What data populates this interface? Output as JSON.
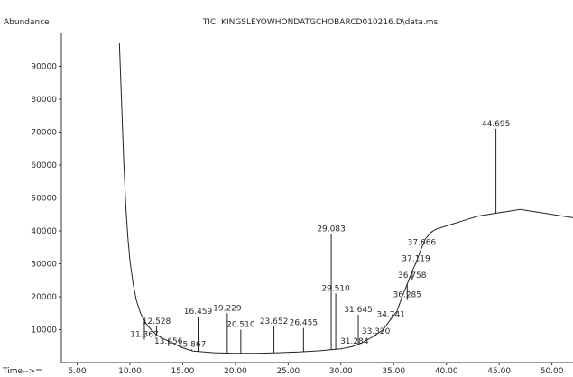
{
  "chart_data": {
    "type": "line",
    "title": "TIC: KINGSLEYOWHONDATGCHOBARCD010216.D\\data.ms",
    "ylabel": "Abundance",
    "xlabel": "Time-->",
    "xlim": [
      3.5,
      52.0
    ],
    "ylim": [
      0,
      100000
    ],
    "xticks": [
      5.0,
      10.0,
      15.0,
      20.0,
      25.0,
      30.0,
      35.0,
      40.0,
      45.0,
      50.0
    ],
    "xtick_labels": [
      "5.00",
      "10.00",
      "15.00",
      "20.00",
      "25.00",
      "30.00",
      "35.00",
      "40.00",
      "45.00",
      "50.00"
    ],
    "yticks": [
      10000,
      20000,
      30000,
      40000,
      50000,
      60000,
      70000,
      80000,
      90000
    ],
    "ytick_labels": [
      "10000",
      "20000",
      "30000",
      "40000",
      "50000",
      "60000",
      "70000",
      "80000",
      "90000"
    ],
    "grid": false,
    "baseline": [
      [
        9.0,
        97000
      ],
      [
        9.2,
        80000
      ],
      [
        9.4,
        62000
      ],
      [
        9.6,
        48000
      ],
      [
        9.8,
        38000
      ],
      [
        10.0,
        31000
      ],
      [
        10.3,
        24000
      ],
      [
        10.6,
        19000
      ],
      [
        11.0,
        15000
      ],
      [
        11.5,
        12000
      ],
      [
        12.0,
        10000
      ],
      [
        12.5,
        8500
      ],
      [
        13.0,
        7500
      ],
      [
        14.0,
        6000
      ],
      [
        15.0,
        4500
      ],
      [
        16.0,
        3500
      ],
      [
        18.0,
        3000
      ],
      [
        20.0,
        2800
      ],
      [
        22.0,
        2800
      ],
      [
        24.0,
        3000
      ],
      [
        26.0,
        3200
      ],
      [
        28.0,
        3600
      ],
      [
        30.0,
        4200
      ],
      [
        31.0,
        4800
      ],
      [
        32.0,
        6000
      ],
      [
        33.0,
        7800
      ],
      [
        34.0,
        10000
      ],
      [
        34.8,
        13500
      ],
      [
        35.3,
        15500
      ],
      [
        35.8,
        20000
      ],
      [
        36.3,
        24000
      ],
      [
        36.8,
        28000
      ],
      [
        37.2,
        31000
      ],
      [
        37.6,
        34500
      ],
      [
        38.0,
        37500
      ],
      [
        38.5,
        39500
      ],
      [
        39.0,
        40500
      ],
      [
        40.0,
        41500
      ],
      [
        41.0,
        42500
      ],
      [
        42.0,
        43500
      ],
      [
        43.0,
        44500
      ],
      [
        44.0,
        45000
      ],
      [
        45.0,
        45500
      ],
      [
        46.0,
        46000
      ],
      [
        47.0,
        46500
      ],
      [
        48.0,
        46000
      ],
      [
        49.0,
        45500
      ],
      [
        50.0,
        45000
      ],
      [
        51.0,
        44500
      ],
      [
        52.0,
        44000
      ]
    ],
    "peaks": [
      {
        "x": 11.367,
        "label": "11.367",
        "y": 7000
      },
      {
        "x": 12.528,
        "label": "12.528",
        "y": 11000
      },
      {
        "x": 13.656,
        "label": "13.656",
        "y": 5000
      },
      {
        "x": 15.867,
        "label": "15.867",
        "y": 4000
      },
      {
        "x": 16.459,
        "label": "16.459",
        "y": 14000
      },
      {
        "x": 19.229,
        "label": "19.229",
        "y": 15000
      },
      {
        "x": 20.51,
        "label": "20.510",
        "y": 10000
      },
      {
        "x": 23.652,
        "label": "23.652",
        "y": 11000
      },
      {
        "x": 26.455,
        "label": "26.455",
        "y": 10500
      },
      {
        "x": 29.083,
        "label": "29.083",
        "y": 39000
      },
      {
        "x": 29.51,
        "label": "29.510",
        "y": 21000
      },
      {
        "x": 31.645,
        "label": "31.645",
        "y": 14500
      },
      {
        "x": 31.284,
        "label": "31.284",
        "y": 5000
      },
      {
        "x": 33.32,
        "label": "33.320",
        "y": 8000
      },
      {
        "x": 34.741,
        "label": "34.741",
        "y": 13000
      },
      {
        "x": 36.285,
        "label": "36.285",
        "y": 19000
      },
      {
        "x": 36.758,
        "label": "36.758",
        "y": 25000
      },
      {
        "x": 37.119,
        "label": "37.119",
        "y": 30000
      },
      {
        "x": 37.666,
        "label": "37.666",
        "y": 35000
      },
      {
        "x": 44.695,
        "label": "44.695",
        "y": 71000
      }
    ]
  }
}
